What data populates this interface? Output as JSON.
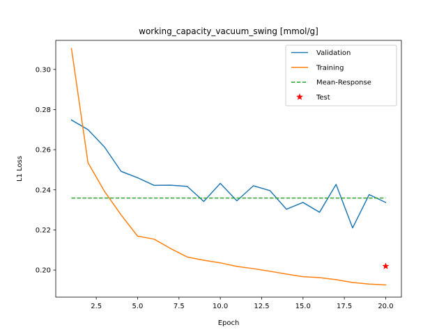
{
  "chart_data": {
    "type": "line",
    "title": "working_capacity_vacuum_swing [mmol/g]",
    "xlabel": "Epoch",
    "ylabel": "L1 Loss",
    "xlim": [
      0.05,
      20.95
    ],
    "ylim": [
      0.1865,
      0.3145
    ],
    "xticks": [
      2.5,
      5.0,
      7.5,
      10.0,
      12.5,
      15.0,
      17.5,
      20.0
    ],
    "xtick_labels": [
      "2.5",
      "5.0",
      "7.5",
      "10.0",
      "12.5",
      "15.0",
      "17.5",
      "20.0"
    ],
    "yticks": [
      0.2,
      0.22,
      0.24,
      0.26,
      0.28,
      0.3
    ],
    "ytick_labels": [
      "0.20",
      "0.22",
      "0.24",
      "0.26",
      "0.28",
      "0.30"
    ],
    "grid": false,
    "legend_position": "top-right",
    "series": [
      {
        "name": "Validation",
        "kind": "line",
        "color": "#1f77b4",
        "dash": "solid",
        "x": [
          1,
          2,
          3,
          4,
          5,
          6,
          7,
          8,
          9,
          10,
          11,
          12,
          13,
          14,
          15,
          16,
          17,
          18,
          19,
          20
        ],
        "y": [
          0.2748,
          0.27,
          0.2613,
          0.2492,
          0.246,
          0.2422,
          0.2423,
          0.2417,
          0.2342,
          0.2432,
          0.2345,
          0.242,
          0.2396,
          0.2303,
          0.2337,
          0.2288,
          0.2427,
          0.221,
          0.2376,
          0.2337
        ]
      },
      {
        "name": "Training",
        "kind": "line",
        "color": "#ff7f0e",
        "dash": "solid",
        "x": [
          1,
          2,
          3,
          4,
          5,
          6,
          7,
          8,
          9,
          10,
          11,
          12,
          13,
          14,
          15,
          16,
          17,
          18,
          19,
          20
        ],
        "y": [
          0.3104,
          0.2535,
          0.2392,
          0.2275,
          0.2169,
          0.2154,
          0.2107,
          0.2065,
          0.2049,
          0.2036,
          0.2018,
          0.2007,
          0.1994,
          0.198,
          0.1967,
          0.1962,
          0.1952,
          0.1938,
          0.193,
          0.1926
        ]
      },
      {
        "name": "Mean-Response",
        "kind": "line",
        "color": "#2ca02c",
        "dash": "dashed",
        "x": [
          1,
          20
        ],
        "y": [
          0.2359,
          0.2359
        ]
      },
      {
        "name": "Test",
        "kind": "scatter",
        "marker": "star",
        "color": "#ff0000",
        "x": [
          20
        ],
        "y": [
          0.2019
        ]
      }
    ]
  }
}
